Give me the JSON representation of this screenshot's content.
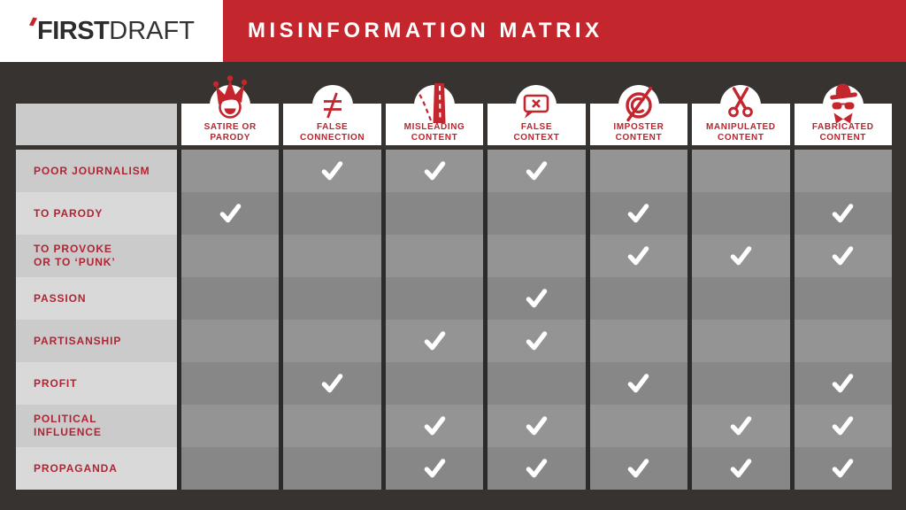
{
  "header": {
    "logo_first": "FIRST",
    "logo_draft": "DRAFT",
    "title": "MISINFORMATION MATRIX"
  },
  "colors": {
    "accent_red": "#c4262d",
    "row_label_red": "#b12433",
    "column_label_red": "#b9252e",
    "page_background": "#363330",
    "grid_line": "#2d2b29",
    "cell_light": "#949494",
    "cell_dark": "#878787",
    "row_label_bg_dark": "#cbcbcb",
    "row_label_bg_light": "#d9d9d9",
    "header_box_white": "#ffffff",
    "checkmark_white": "#ffffff",
    "logo_text": "#2e2c2a"
  },
  "matrix": {
    "columns": [
      {
        "label": "SATIRE OR\nPARODY",
        "icon": "jester-icon"
      },
      {
        "label": "FALSE\nCONNECTION",
        "icon": "not-equal-icon"
      },
      {
        "label": "MISLEADING\nCONTENT",
        "icon": "diverging-road-icon"
      },
      {
        "label": "FALSE\nCONTEXT",
        "icon": "speech-bubble-x-icon"
      },
      {
        "label": "IMPOSTER\nCONTENT",
        "icon": "no-copyright-icon"
      },
      {
        "label": "MANIPULATED\nCONTENT",
        "icon": "scissors-icon"
      },
      {
        "label": "FABRICATED\nCONTENT",
        "icon": "spy-icon"
      }
    ],
    "rows": [
      {
        "label": "POOR JOURNALISM",
        "checks": [
          0,
          1,
          1,
          1,
          0,
          0,
          0
        ]
      },
      {
        "label": "TO PARODY",
        "checks": [
          1,
          0,
          0,
          0,
          1,
          0,
          1
        ]
      },
      {
        "label": "TO PROVOKE\nOR TO ‘PUNK’",
        "checks": [
          0,
          0,
          0,
          0,
          1,
          1,
          1
        ]
      },
      {
        "label": "PASSION",
        "checks": [
          0,
          0,
          0,
          1,
          0,
          0,
          0
        ]
      },
      {
        "label": "PARTISANSHIP",
        "checks": [
          0,
          0,
          1,
          1,
          0,
          0,
          0
        ]
      },
      {
        "label": "PROFIT",
        "checks": [
          0,
          1,
          0,
          0,
          1,
          0,
          1
        ]
      },
      {
        "label": "POLITICAL\nINFLUENCE",
        "checks": [
          0,
          0,
          1,
          1,
          0,
          1,
          1
        ]
      },
      {
        "label": "PROPAGANDA",
        "checks": [
          0,
          0,
          1,
          1,
          1,
          1,
          1
        ]
      }
    ]
  }
}
